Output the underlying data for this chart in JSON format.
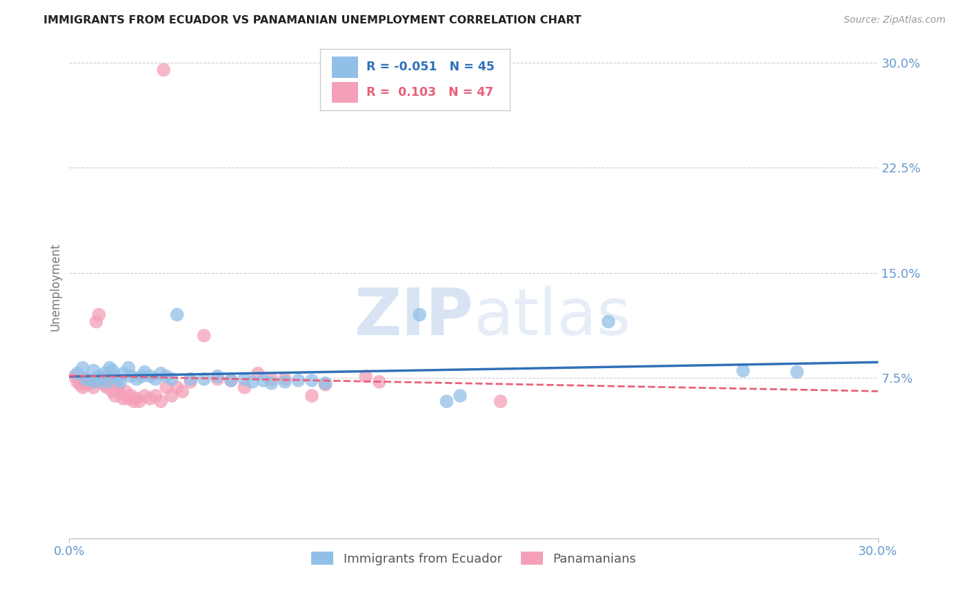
{
  "title": "IMMIGRANTS FROM ECUADOR VS PANAMANIAN UNEMPLOYMENT CORRELATION CHART",
  "source": "Source: ZipAtlas.com",
  "ylabel": "Unemployment",
  "xmin": 0.0,
  "xmax": 0.3,
  "ymin": -0.04,
  "ymax": 0.32,
  "right_ytick_vals": [
    0.075,
    0.15,
    0.225,
    0.3
  ],
  "right_ytick_labels": [
    "7.5%",
    "15.0%",
    "22.5%",
    "30.0%"
  ],
  "xlabel_ticks": [
    0.0,
    0.3
  ],
  "xlabel_labels": [
    "0.0%",
    "30.0%"
  ],
  "legend_R_blue": "-0.051",
  "legend_N_blue": "45",
  "legend_R_pink": "0.103",
  "legend_N_pink": "47",
  "blue_color": "#92BFE8",
  "pink_color": "#F4A0B8",
  "blue_line_color": "#3070B8",
  "pink_line_color": "#E8607A",
  "watermark_color": "#C8D8EE",
  "blue_scatter": [
    [
      0.003,
      0.078
    ],
    [
      0.005,
      0.082
    ],
    [
      0.006,
      0.074
    ],
    [
      0.008,
      0.073
    ],
    [
      0.009,
      0.08
    ],
    [
      0.01,
      0.072
    ],
    [
      0.011,
      0.076
    ],
    [
      0.012,
      0.074
    ],
    [
      0.013,
      0.078
    ],
    [
      0.014,
      0.072
    ],
    [
      0.015,
      0.082
    ],
    [
      0.016,
      0.08
    ],
    [
      0.017,
      0.076
    ],
    [
      0.018,
      0.074
    ],
    [
      0.019,
      0.072
    ],
    [
      0.02,
      0.078
    ],
    [
      0.022,
      0.082
    ],
    [
      0.023,
      0.076
    ],
    [
      0.025,
      0.074
    ],
    [
      0.027,
      0.076
    ],
    [
      0.028,
      0.079
    ],
    [
      0.03,
      0.076
    ],
    [
      0.032,
      0.074
    ],
    [
      0.034,
      0.078
    ],
    [
      0.036,
      0.076
    ],
    [
      0.038,
      0.074
    ],
    [
      0.04,
      0.12
    ],
    [
      0.045,
      0.074
    ],
    [
      0.05,
      0.074
    ],
    [
      0.055,
      0.076
    ],
    [
      0.06,
      0.073
    ],
    [
      0.065,
      0.074
    ],
    [
      0.068,
      0.072
    ],
    [
      0.072,
      0.073
    ],
    [
      0.075,
      0.071
    ],
    [
      0.08,
      0.072
    ],
    [
      0.085,
      0.073
    ],
    [
      0.09,
      0.073
    ],
    [
      0.095,
      0.071
    ],
    [
      0.13,
      0.12
    ],
    [
      0.14,
      0.058
    ],
    [
      0.145,
      0.062
    ],
    [
      0.2,
      0.115
    ],
    [
      0.25,
      0.08
    ],
    [
      0.27,
      0.079
    ]
  ],
  "pink_scatter": [
    [
      0.002,
      0.076
    ],
    [
      0.003,
      0.072
    ],
    [
      0.004,
      0.07
    ],
    [
      0.005,
      0.068
    ],
    [
      0.006,
      0.074
    ],
    [
      0.007,
      0.07
    ],
    [
      0.008,
      0.072
    ],
    [
      0.009,
      0.068
    ],
    [
      0.01,
      0.115
    ],
    [
      0.011,
      0.12
    ],
    [
      0.012,
      0.072
    ],
    [
      0.013,
      0.07
    ],
    [
      0.014,
      0.068
    ],
    [
      0.015,
      0.072
    ],
    [
      0.016,
      0.065
    ],
    [
      0.017,
      0.062
    ],
    [
      0.018,
      0.068
    ],
    [
      0.019,
      0.064
    ],
    [
      0.02,
      0.06
    ],
    [
      0.021,
      0.065
    ],
    [
      0.022,
      0.06
    ],
    [
      0.023,
      0.062
    ],
    [
      0.024,
      0.058
    ],
    [
      0.025,
      0.06
    ],
    [
      0.026,
      0.058
    ],
    [
      0.028,
      0.062
    ],
    [
      0.03,
      0.06
    ],
    [
      0.032,
      0.062
    ],
    [
      0.034,
      0.058
    ],
    [
      0.035,
      0.295
    ],
    [
      0.036,
      0.068
    ],
    [
      0.038,
      0.062
    ],
    [
      0.04,
      0.068
    ],
    [
      0.042,
      0.065
    ],
    [
      0.045,
      0.072
    ],
    [
      0.05,
      0.105
    ],
    [
      0.055,
      0.074
    ],
    [
      0.06,
      0.073
    ],
    [
      0.065,
      0.068
    ],
    [
      0.07,
      0.078
    ],
    [
      0.075,
      0.074
    ],
    [
      0.08,
      0.074
    ],
    [
      0.09,
      0.062
    ],
    [
      0.095,
      0.07
    ],
    [
      0.11,
      0.076
    ],
    [
      0.115,
      0.072
    ],
    [
      0.16,
      0.058
    ]
  ]
}
